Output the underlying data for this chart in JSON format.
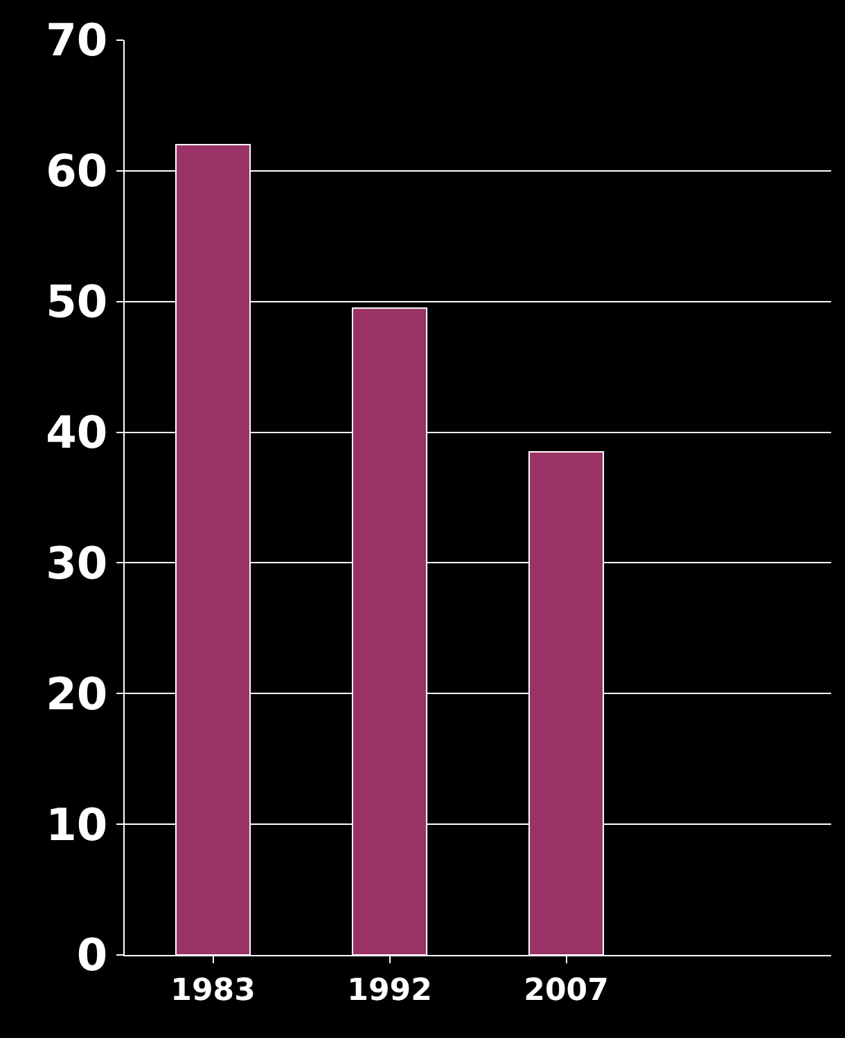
{
  "chart_data": {
    "type": "bar",
    "categories": [
      "1983",
      "1992",
      "2007",
      null
    ],
    "series": [
      {
        "color": "#993366",
        "values": [
          62,
          49.5,
          38.5,
          null
        ]
      }
    ],
    "ylim": [
      0,
      70
    ],
    "yticks": [
      0,
      10,
      20,
      30,
      40,
      50,
      60,
      70
    ],
    "grid": "y"
  }
}
